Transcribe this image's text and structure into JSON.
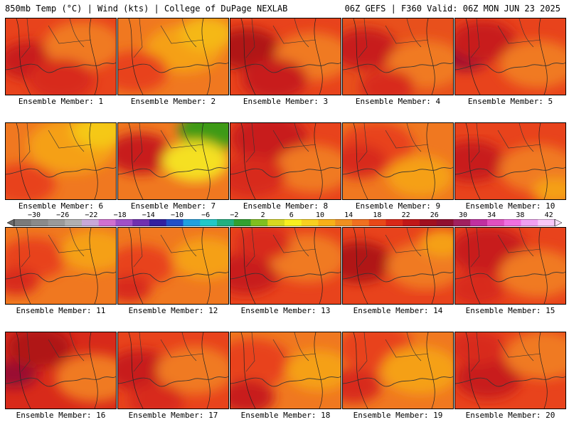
{
  "header": {
    "left": "850mb Temp (°C) | Wind (kts) | College of DuPage NEXLAB",
    "right": "06Z GEFS | F360 Valid: 06Z MON JUN 23 2025"
  },
  "label_prefix": "Ensemble Member:",
  "members": [
    {
      "label": "Ensemble Member: 1",
      "base": "#e8431c",
      "blobs": [
        [
          "#c81a1a",
          0.22,
          0.55,
          0.28
        ],
        [
          "#f07a20",
          0.7,
          0.35,
          0.35
        ],
        [
          "#d82a1a",
          0.5,
          0.8,
          0.3
        ]
      ]
    },
    {
      "label": "Ensemble Member: 2",
      "base": "#f07820",
      "blobs": [
        [
          "#f5a018",
          0.6,
          0.4,
          0.35
        ],
        [
          "#e8431c",
          0.15,
          0.7,
          0.3
        ],
        [
          "#f5b818",
          0.8,
          0.2,
          0.25
        ]
      ]
    },
    {
      "label": "Ensemble Member: 3",
      "base": "#e8431c",
      "blobs": [
        [
          "#b01818",
          0.15,
          0.4,
          0.3
        ],
        [
          "#f07a20",
          0.75,
          0.5,
          0.35
        ],
        [
          "#c81a1a",
          0.4,
          0.8,
          0.3
        ]
      ]
    },
    {
      "label": "Ensemble Member: 4",
      "base": "#e8501c",
      "blobs": [
        [
          "#c81a1a",
          0.2,
          0.4,
          0.3
        ],
        [
          "#f07a20",
          0.75,
          0.6,
          0.35
        ],
        [
          "#d82a1a",
          0.4,
          0.9,
          0.25
        ]
      ]
    },
    {
      "label": "Ensemble Member: 5",
      "base": "#e8431c",
      "blobs": [
        [
          "#9a1030",
          0.1,
          0.5,
          0.2
        ],
        [
          "#c81a1a",
          0.25,
          0.3,
          0.3
        ],
        [
          "#f07a20",
          0.75,
          0.6,
          0.35
        ]
      ]
    },
    {
      "label": "Ensemble Member: 6",
      "base": "#f07820",
      "blobs": [
        [
          "#f5a018",
          0.6,
          0.3,
          0.4
        ],
        [
          "#f5c818",
          0.85,
          0.1,
          0.25
        ],
        [
          "#e8431c",
          0.15,
          0.8,
          0.3
        ]
      ]
    },
    {
      "label": "Ensemble Member: 7",
      "base": "#f07820",
      "blobs": [
        [
          "#c81a1a",
          0.2,
          0.4,
          0.3
        ],
        [
          "#3c9a18",
          0.85,
          0.1,
          0.3
        ],
        [
          "#f5e020",
          0.7,
          0.5,
          0.3
        ]
      ]
    },
    {
      "label": "Ensemble Member: 8",
      "base": "#e8431c",
      "blobs": [
        [
          "#c81a1a",
          0.35,
          0.2,
          0.35
        ],
        [
          "#f07a20",
          0.75,
          0.6,
          0.35
        ],
        [
          "#d82a1a",
          0.2,
          0.7,
          0.3
        ]
      ]
    },
    {
      "label": "Ensemble Member: 9",
      "base": "#f07820",
      "blobs": [
        [
          "#e8431c",
          0.3,
          0.3,
          0.35
        ],
        [
          "#f5a018",
          0.7,
          0.7,
          0.3
        ],
        [
          "#d82a1a",
          0.15,
          0.5,
          0.25
        ]
      ]
    },
    {
      "label": "Ensemble Member: 10",
      "base": "#e8431c",
      "blobs": [
        [
          "#c81a1a",
          0.15,
          0.5,
          0.3
        ],
        [
          "#f07a20",
          0.75,
          0.6,
          0.35
        ],
        [
          "#f5a018",
          0.9,
          0.9,
          0.2
        ]
      ]
    },
    {
      "label": "Ensemble Member: 11",
      "base": "#f07820",
      "blobs": [
        [
          "#e8431c",
          0.25,
          0.4,
          0.3
        ],
        [
          "#d82a1a",
          0.1,
          0.7,
          0.2
        ],
        [
          "#f5a018",
          0.8,
          0.3,
          0.3
        ]
      ]
    },
    {
      "label": "Ensemble Member: 12",
      "base": "#f07820",
      "blobs": [
        [
          "#e8431c",
          0.2,
          0.5,
          0.3
        ],
        [
          "#f5a018",
          0.8,
          0.4,
          0.3
        ],
        [
          "#d82a1a",
          0.1,
          0.8,
          0.2
        ]
      ]
    },
    {
      "label": "Ensemble Member: 13",
      "base": "#e8431c",
      "blobs": [
        [
          "#c81a1a",
          0.15,
          0.6,
          0.3
        ],
        [
          "#f07a20",
          0.7,
          0.4,
          0.35
        ],
        [
          "#d82a1a",
          0.3,
          0.2,
          0.25
        ]
      ]
    },
    {
      "label": "Ensemble Member: 14",
      "base": "#e8431c",
      "blobs": [
        [
          "#b01818",
          0.15,
          0.45,
          0.3
        ],
        [
          "#f07a20",
          0.75,
          0.5,
          0.35
        ],
        [
          "#f5a018",
          0.9,
          0.2,
          0.2
        ]
      ]
    },
    {
      "label": "Ensemble Member: 15",
      "base": "#e8431c",
      "blobs": [
        [
          "#c81a1a",
          0.3,
          0.3,
          0.35
        ],
        [
          "#f07a20",
          0.75,
          0.6,
          0.35
        ],
        [
          "#d82a1a",
          0.2,
          0.8,
          0.25
        ]
      ]
    },
    {
      "label": "Ensemble Member: 16",
      "base": "#d82a1a",
      "blobs": [
        [
          "#9a1030",
          0.08,
          0.55,
          0.2
        ],
        [
          "#b01818",
          0.3,
          0.2,
          0.3
        ],
        [
          "#f07a20",
          0.8,
          0.6,
          0.35
        ]
      ]
    },
    {
      "label": "Ensemble Member: 17",
      "base": "#e8431c",
      "blobs": [
        [
          "#c81a1a",
          0.2,
          0.5,
          0.3
        ],
        [
          "#f07a20",
          0.7,
          0.5,
          0.35
        ],
        [
          "#d82a1a",
          0.35,
          0.9,
          0.25
        ]
      ]
    },
    {
      "label": "Ensemble Member: 18",
      "base": "#f07820",
      "blobs": [
        [
          "#e8431c",
          0.2,
          0.4,
          0.35
        ],
        [
          "#c81a1a",
          0.15,
          0.85,
          0.25
        ],
        [
          "#f5a018",
          0.8,
          0.5,
          0.3
        ]
      ]
    },
    {
      "label": "Ensemble Member: 19",
      "base": "#f07820",
      "blobs": [
        [
          "#e8431c",
          0.3,
          0.2,
          0.35
        ],
        [
          "#f5a018",
          0.7,
          0.5,
          0.35
        ],
        [
          "#d82a1a",
          0.1,
          0.7,
          0.25
        ]
      ]
    },
    {
      "label": "Ensemble Member: 20",
      "base": "#e8431c",
      "blobs": [
        [
          "#c81a1a",
          0.3,
          0.6,
          0.3
        ],
        [
          "#f07a20",
          0.8,
          0.3,
          0.35
        ],
        [
          "#d82a1a",
          0.2,
          0.2,
          0.25
        ]
      ]
    }
  ],
  "colorbar": {
    "tick_labels": [
      "−30",
      "−26",
      "−22",
      "−18",
      "−14",
      "−10",
      "−6",
      "−2",
      "2",
      "6",
      "10",
      "14",
      "18",
      "22",
      "26",
      "30",
      "34",
      "38",
      "42"
    ],
    "colors": [
      "#7a7a7a",
      "#8a8a8a",
      "#9a9a9a",
      "#b0b0b0",
      "#c8a8d8",
      "#d070d0",
      "#a050c8",
      "#7030b0",
      "#3020a0",
      "#2050c8",
      "#20a0e0",
      "#20c8c8",
      "#20b080",
      "#30a030",
      "#80c020",
      "#d8d820",
      "#f8f020",
      "#f8d020",
      "#f8b018",
      "#f09020",
      "#f07020",
      "#e84818",
      "#d82818",
      "#c01818",
      "#a01020",
      "#901030",
      "#a02060",
      "#c030a0",
      "#e050c0",
      "#f070e0",
      "#f0a0f0",
      "#f8c8f8"
    ]
  }
}
